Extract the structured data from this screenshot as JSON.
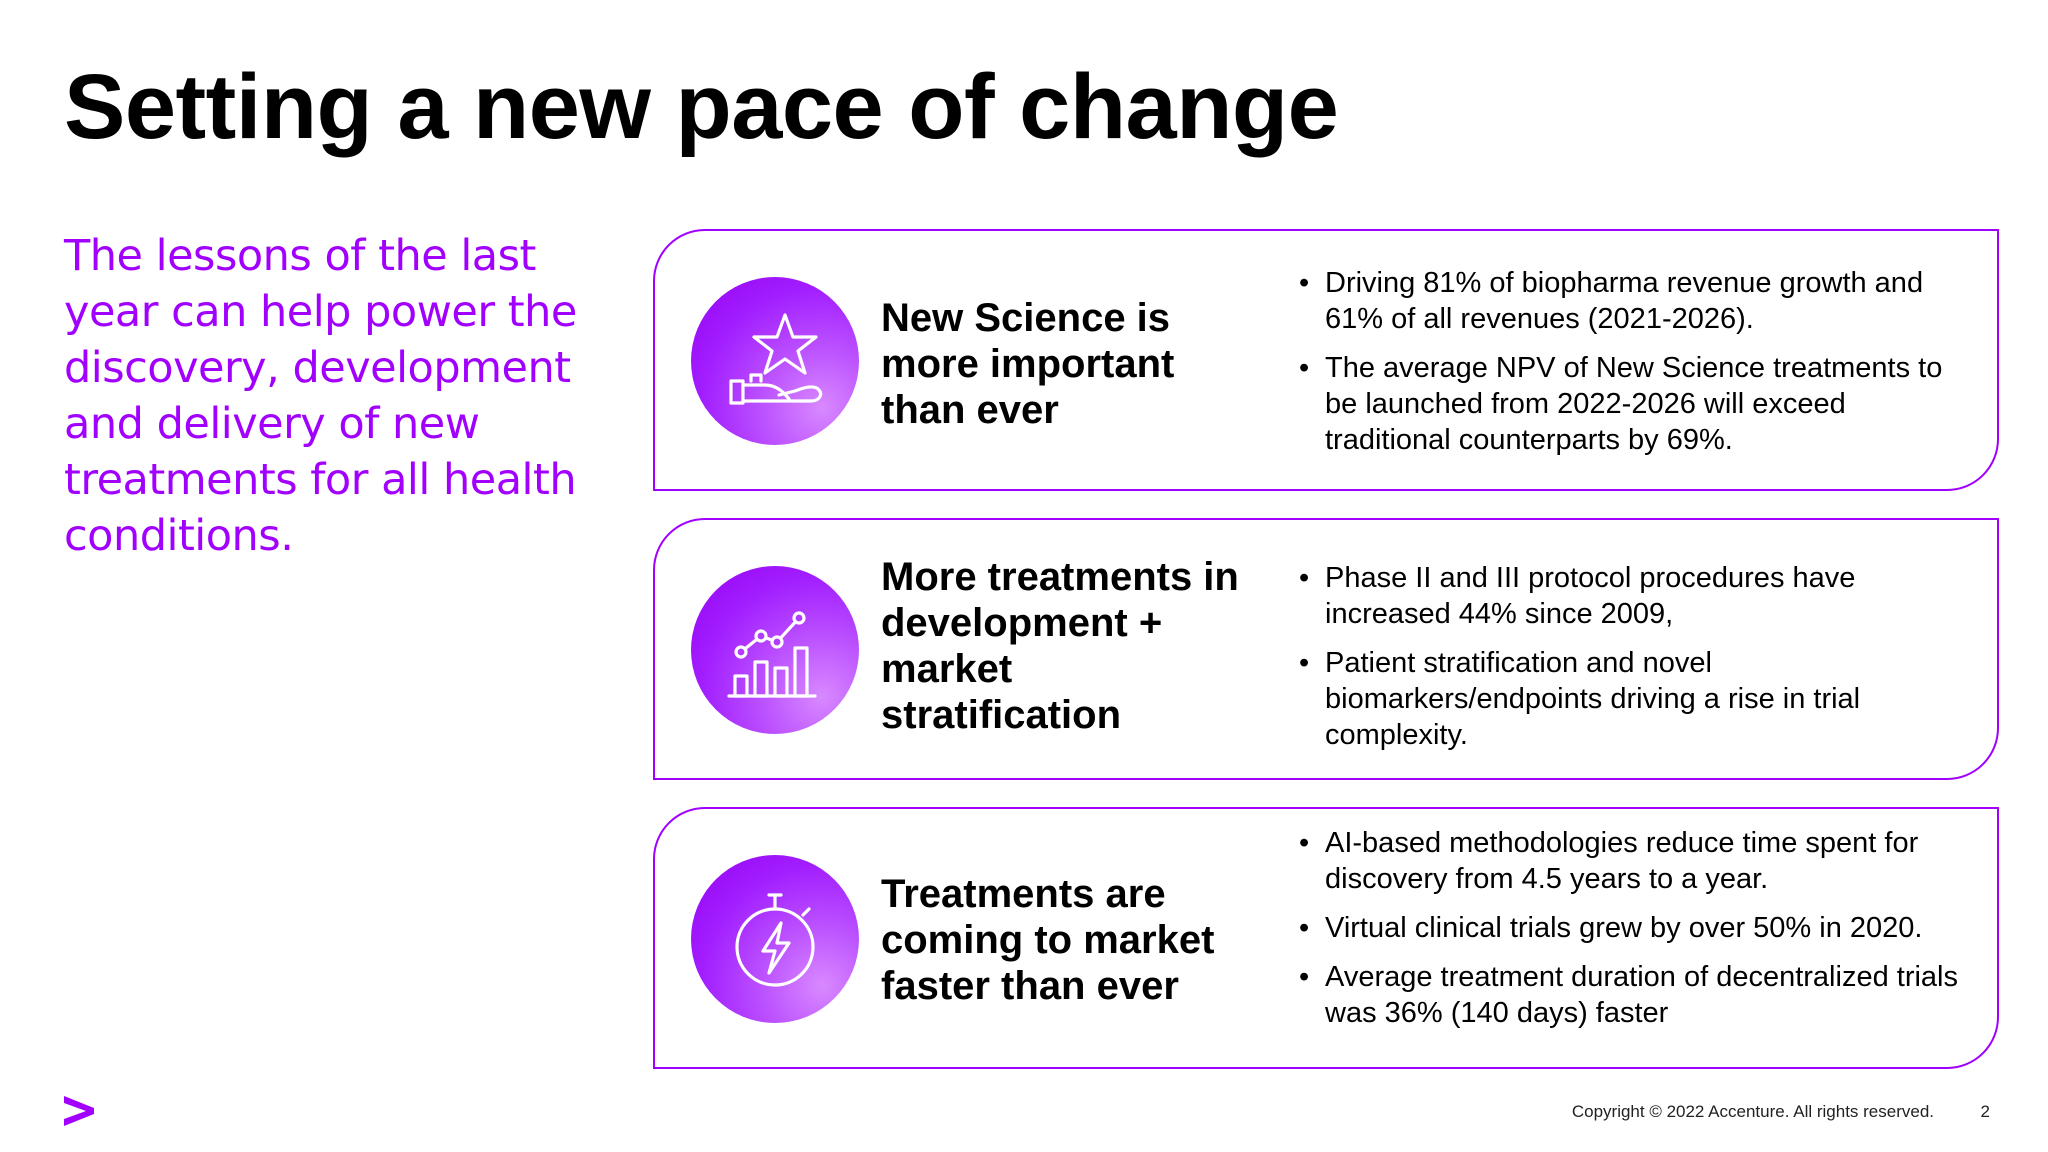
{
  "title": "Setting a new pace of change",
  "lead_text": "The lessons of the last year can help power the discovery, development and delivery of new treatments for all health conditions.",
  "accent_color": "#a100ff",
  "cards": [
    {
      "icon": "star-hand-icon",
      "heading": "New Science is more important than ever",
      "bullets": [
        "Driving 81% of biopharma revenue growth and 61% of all revenues (2021-2026).",
        "The average NPV of New Science treatments to be launched from 2022-2026 will exceed traditional counterparts by 69%."
      ]
    },
    {
      "icon": "growth-chart-icon",
      "heading": "More treatments in development + market stratification",
      "bullets": [
        "Phase II and III protocol procedures have increased 44% since 2009,",
        "Patient stratification and novel biomarkers/endpoints driving a rise in trial complexity."
      ]
    },
    {
      "icon": "stopwatch-lightning-icon",
      "heading": "Treatments are coming to market faster than ever",
      "bullets": [
        "AI-based methodologies reduce time spent for discovery from 4.5 years to a year.",
        "Virtual clinical trials grew by over 50% in 2020.",
        "Average treatment duration of decentralized trials was 36% (140 days) faster"
      ]
    }
  ],
  "footer": {
    "logo": "accenture-chevron-logo",
    "copyright": "Copyright © 2022 Accenture. All rights reserved.",
    "page_number": "2"
  }
}
